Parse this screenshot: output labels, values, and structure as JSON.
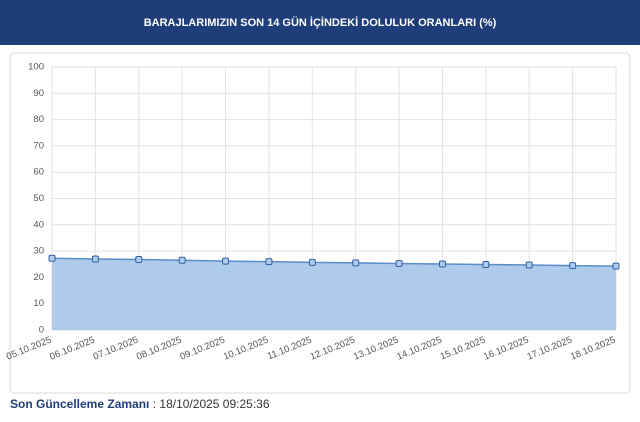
{
  "chart_data": {
    "type": "area",
    "title": "BARAJLARIMIZIN SON 14 GÜN İÇİNDEKİ DOLULUK ORANLARI (%)",
    "categories": [
      "05.10.2025",
      "06.10.2025",
      "07.10.2025",
      "08.10.2025",
      "09.10.2025",
      "10.10.2025",
      "11.10.2025",
      "12.10.2025",
      "13.10.2025",
      "14.10.2025",
      "15.10.2025",
      "16.10.2025",
      "17.10.2025",
      "18.10.2025"
    ],
    "values": [
      27.3,
      27.0,
      26.8,
      26.5,
      26.2,
      26.0,
      25.7,
      25.5,
      25.3,
      25.1,
      24.9,
      24.7,
      24.5,
      24.3
    ],
    "color": "#5b8cc8",
    "fill": "#aecbeb",
    "ylim": [
      0,
      100
    ],
    "yticks": [
      0,
      10,
      20,
      30,
      40,
      50,
      60,
      70,
      80,
      90,
      100
    ],
    "grid": true
  },
  "footer": {
    "label": "Son Güncelleme Zamanı",
    "separator": ":",
    "value": "18/10/2025 09:25:36"
  }
}
